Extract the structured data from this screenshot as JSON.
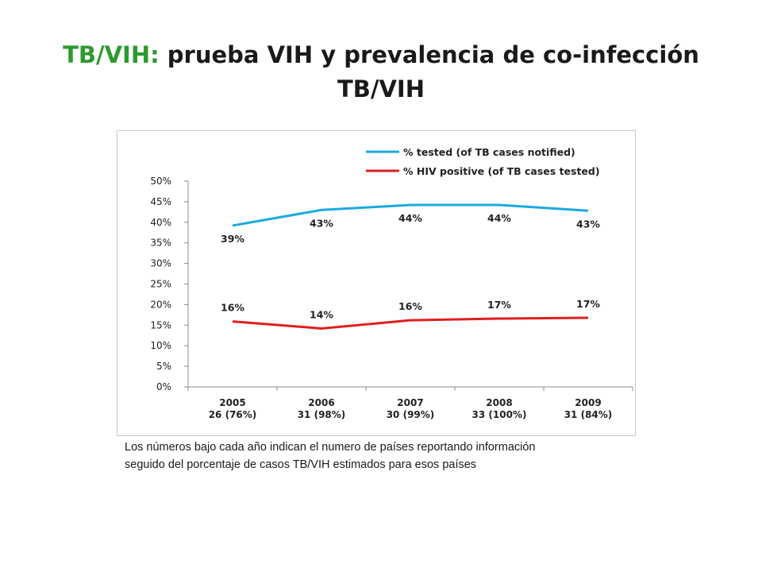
{
  "title": {
    "accent": "TB/VIH:",
    "rest": " prueba VIH y prevalencia de co-infección",
    "line2": "TB/VIH"
  },
  "footnote": {
    "line1": "Los números bajo cada año indican el numero de países reportando información",
    "line2": "seguido del porcentaje de casos TB/VIH  estimados para esos países"
  },
  "chart_data": {
    "type": "line",
    "categories": [
      "2005",
      "2006",
      "2007",
      "2008",
      "2009"
    ],
    "category_sublabels": [
      "26 (76%)",
      "31 (98%)",
      "30 (99%)",
      "33 (100%)",
      "31 (84%)"
    ],
    "ylim": [
      0,
      50
    ],
    "yticks": [
      "0%",
      "5%",
      "10%",
      "15%",
      "20%",
      "25%",
      "30%",
      "35%",
      "40%",
      "45%",
      "50%"
    ],
    "ytick_values": [
      0,
      5,
      10,
      15,
      20,
      25,
      30,
      35,
      40,
      45,
      50
    ],
    "grid": false,
    "legend_position": "top-right",
    "series": [
      {
        "name": "% tested (of TB cases notified)",
        "color": "#1ba9e0",
        "values": [
          39.2,
          43.0,
          44.2,
          44.2,
          42.8
        ],
        "labels": [
          "39%",
          "43%",
          "44%",
          "44%",
          "43%"
        ]
      },
      {
        "name": "% HIV positive (of TB cases tested)",
        "color": "#e01f1f",
        "values": [
          15.9,
          14.2,
          16.2,
          16.6,
          16.8
        ],
        "labels": [
          "16%",
          "14%",
          "16%",
          "17%",
          "17%"
        ]
      }
    ]
  }
}
